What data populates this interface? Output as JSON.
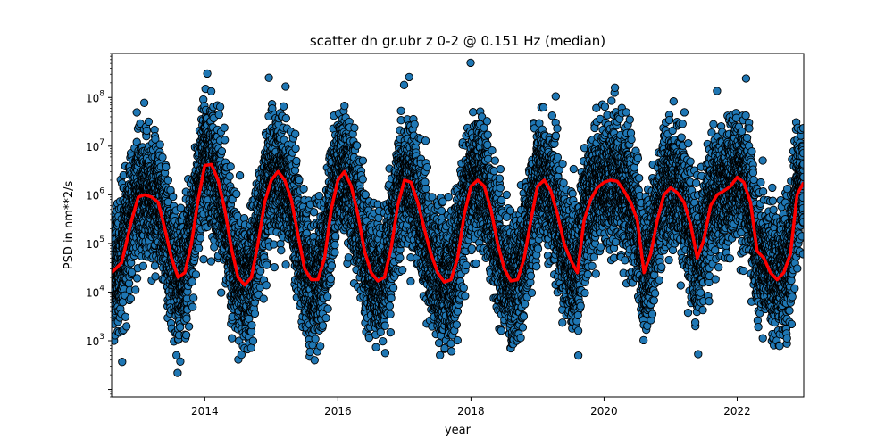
{
  "chart_data": {
    "type": "scatter",
    "title": "scatter dn gr.ubr z 0-2 @ 0.151 Hz (median)",
    "xlabel": "year",
    "ylabel": "PSD in nm**2/s",
    "xlim": [
      2012.6,
      2023.0
    ],
    "ylim": [
      70,
      800000000
    ],
    "yscale": "log",
    "x_ticks": [
      2014,
      2016,
      2018,
      2020,
      2022
    ],
    "y_ticks": [
      1000,
      10000,
      100000,
      1000000,
      10000000,
      100000000
    ],
    "y_tick_labels": [
      {
        "base": "10",
        "exp": "3"
      },
      {
        "base": "10",
        "exp": "4"
      },
      {
        "base": "10",
        "exp": "5"
      },
      {
        "base": "10",
        "exp": "6"
      },
      {
        "base": "10",
        "exp": "7"
      },
      {
        "base": "10",
        "exp": "8"
      }
    ],
    "grid": false,
    "legend": "none",
    "series": [
      {
        "kind": "scatter",
        "color": "#1f77b4",
        "edge_color": "#000000",
        "points_per_day": 4,
        "spread_log10": 0.6
      },
      {
        "kind": "line",
        "color": "#ff0000",
        "x": [
          2012.6,
          2012.75,
          2012.9,
          2013.0,
          2013.1,
          2013.2,
          2013.3,
          2013.4,
          2013.5,
          2013.6,
          2013.7,
          2013.8,
          2013.9,
          2014.0,
          2014.1,
          2014.2,
          2014.3,
          2014.4,
          2014.5,
          2014.6,
          2014.7,
          2014.8,
          2014.9,
          2015.0,
          2015.1,
          2015.2,
          2015.3,
          2015.4,
          2015.5,
          2015.6,
          2015.7,
          2015.8,
          2015.9,
          2016.0,
          2016.1,
          2016.2,
          2016.3,
          2016.4,
          2016.5,
          2016.6,
          2016.7,
          2016.8,
          2016.9,
          2017.0,
          2017.1,
          2017.2,
          2017.3,
          2017.4,
          2017.5,
          2017.6,
          2017.7,
          2017.8,
          2017.9,
          2018.0,
          2018.1,
          2018.2,
          2018.3,
          2018.4,
          2018.5,
          2018.6,
          2018.7,
          2018.8,
          2018.9,
          2019.0,
          2019.1,
          2019.2,
          2019.3,
          2019.4,
          2019.5,
          2019.6,
          2019.7,
          2019.8,
          2019.9,
          2020.0,
          2020.1,
          2020.2,
          2020.3,
          2020.4,
          2020.5,
          2020.6,
          2020.7,
          2020.8,
          2020.9,
          2021.0,
          2021.1,
          2021.2,
          2021.3,
          2021.4,
          2021.5,
          2021.6,
          2021.7,
          2021.8,
          2021.9,
          2022.0,
          2022.1,
          2022.2,
          2022.3,
          2022.4,
          2022.5,
          2022.6,
          2022.7,
          2022.8,
          2022.9,
          2023.0
        ],
        "y": [
          25000,
          40000,
          300000,
          900000,
          1000000,
          900000,
          700000,
          200000,
          50000,
          20000,
          25000,
          100000,
          800000,
          4000000,
          4200000,
          2000000,
          500000,
          80000,
          20000,
          14000,
          20000,
          100000,
          700000,
          2000000,
          3000000,
          2000000,
          800000,
          150000,
          30000,
          18000,
          18000,
          50000,
          500000,
          2000000,
          3000000,
          1500000,
          400000,
          70000,
          25000,
          17000,
          20000,
          80000,
          600000,
          2000000,
          1800000,
          700000,
          200000,
          60000,
          25000,
          16000,
          18000,
          50000,
          400000,
          1500000,
          2000000,
          1500000,
          500000,
          100000,
          30000,
          17000,
          18000,
          50000,
          300000,
          1500000,
          2000000,
          1200000,
          400000,
          100000,
          45000,
          25000,
          300000,
          800000,
          1400000,
          1800000,
          2000000,
          1900000,
          1200000,
          700000,
          300000,
          25000,
          60000,
          300000,
          1000000,
          1400000,
          1100000,
          700000,
          250000,
          50000,
          120000,
          600000,
          1000000,
          1200000,
          1500000,
          2300000,
          1800000,
          700000,
          70000,
          50000,
          25000,
          18000,
          25000,
          60000,
          1000000,
          1800000
        ]
      }
    ]
  }
}
